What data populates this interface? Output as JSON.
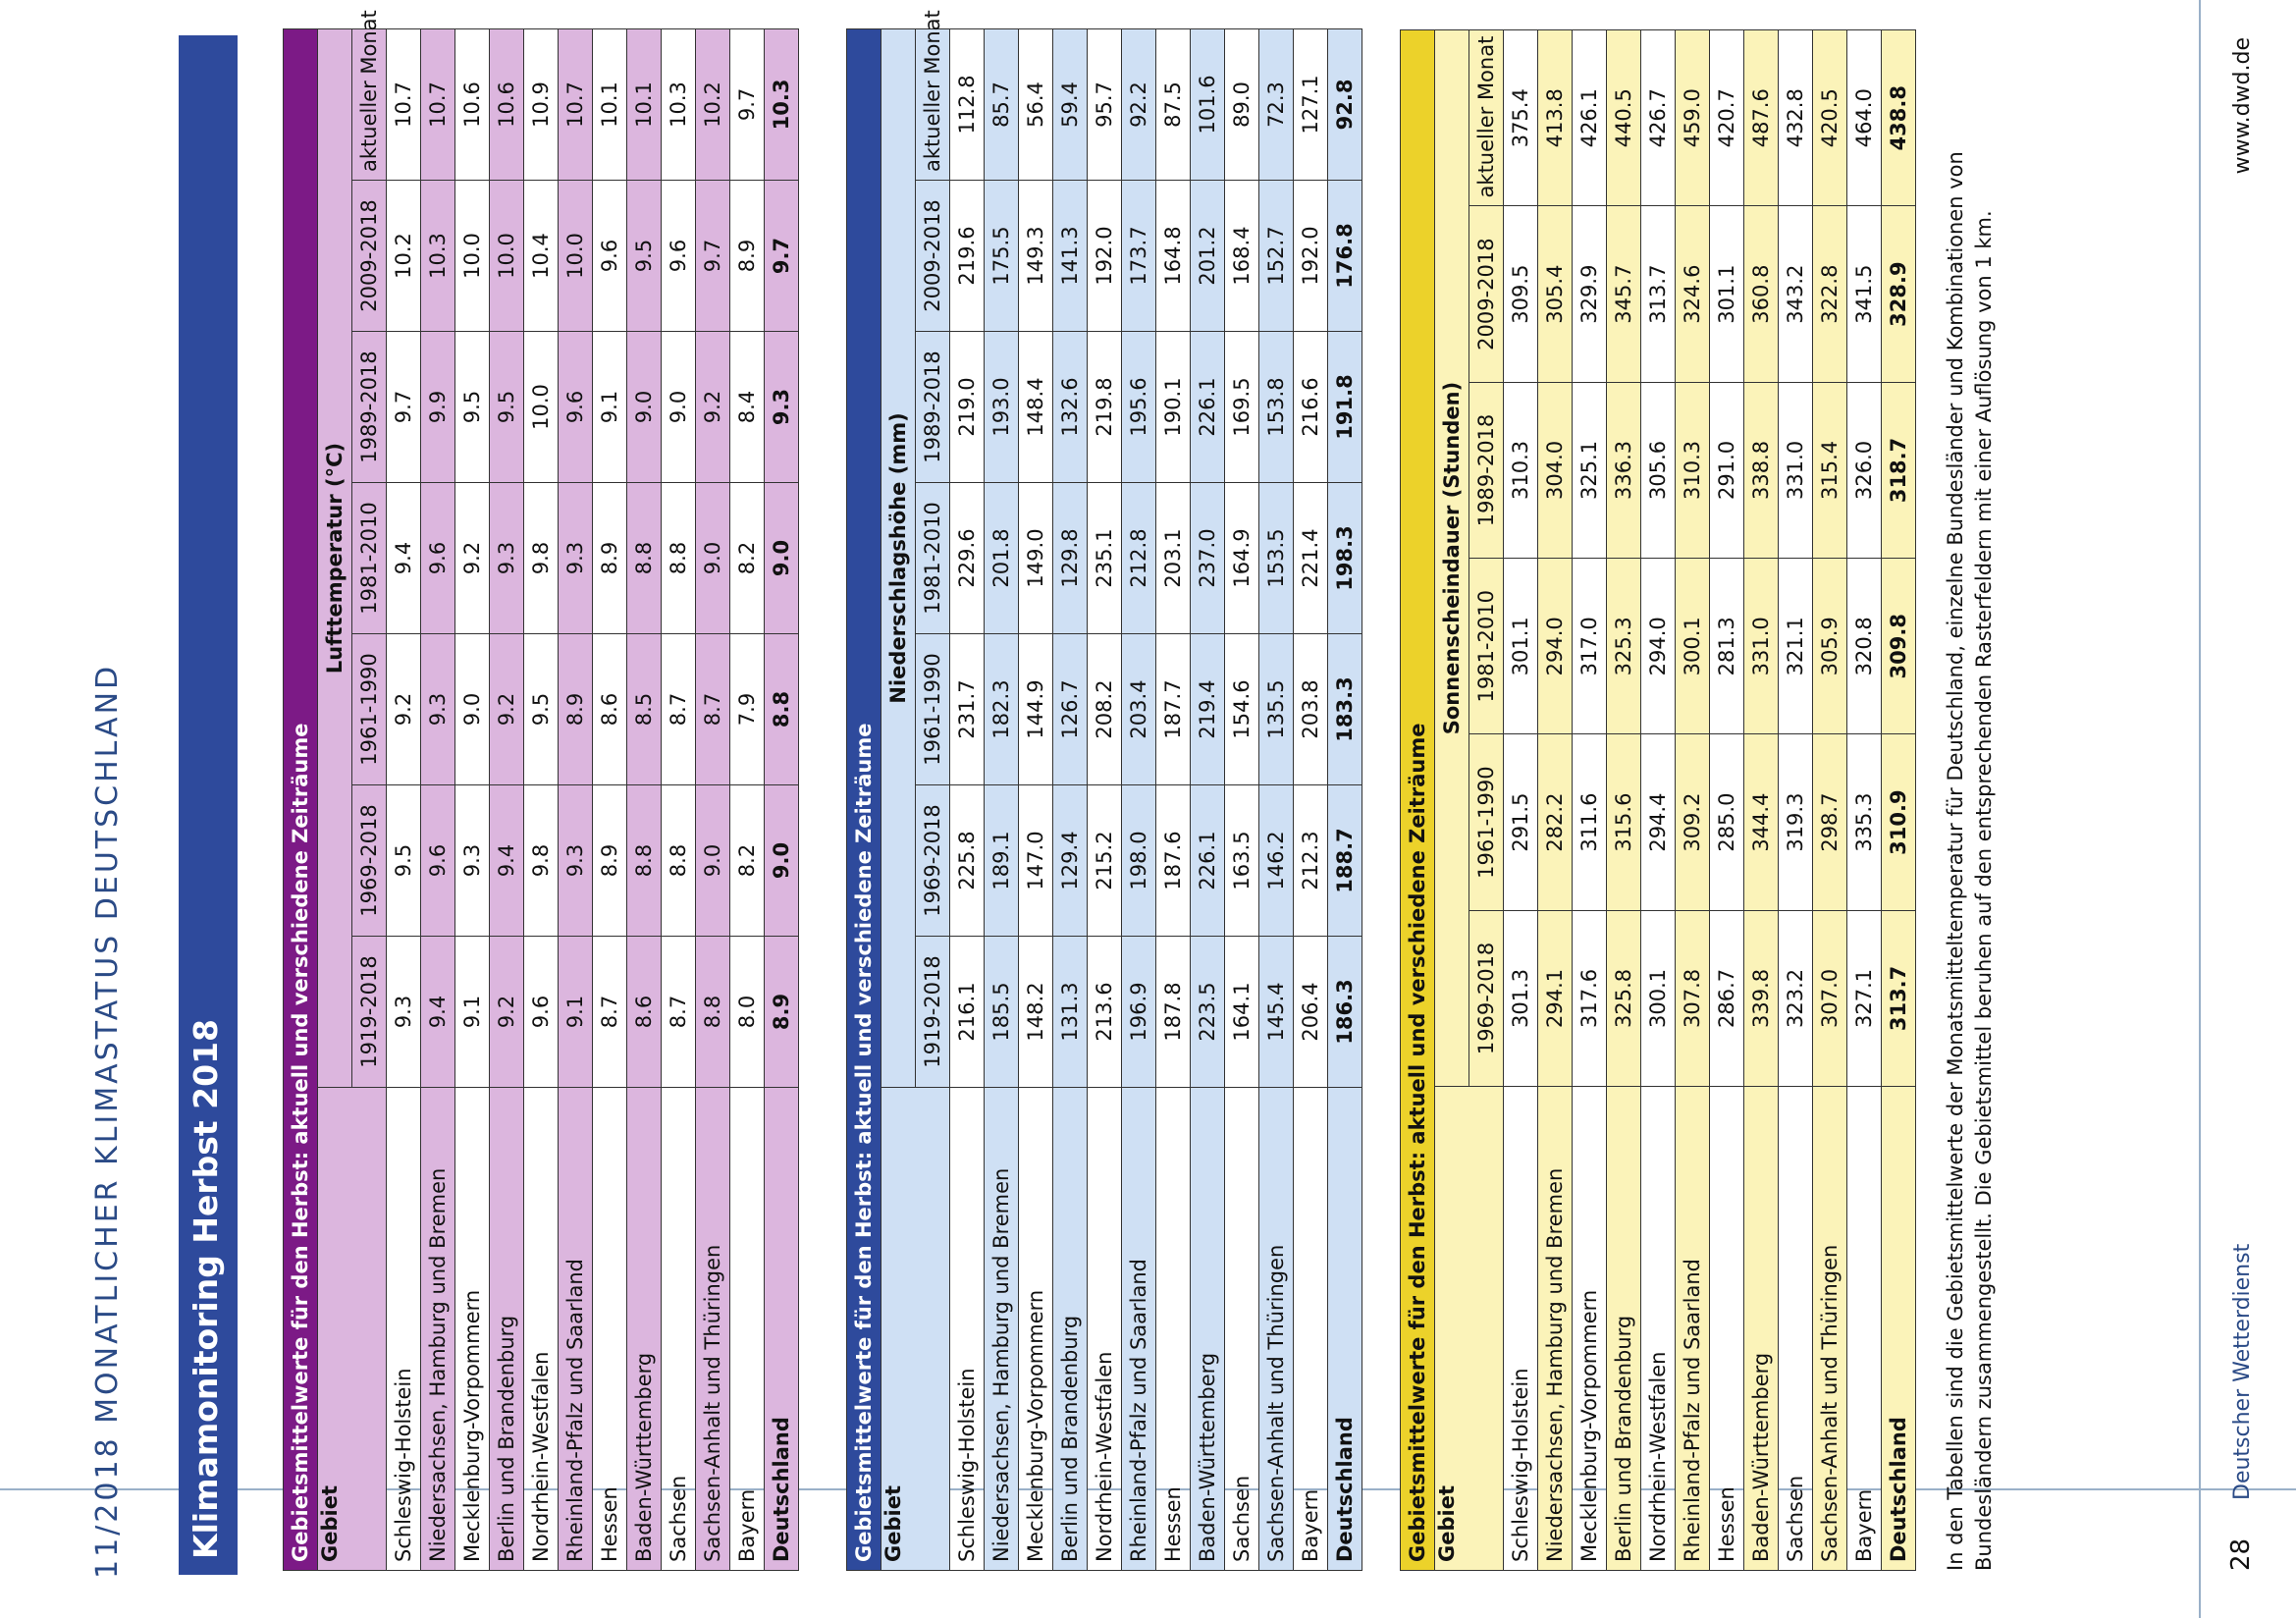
{
  "header": {
    "running_title": "11/2018  MONATLICHER KLIMASTATUS DEUTSCHLAND"
  },
  "title": "Klimamonitoring Herbst 2018",
  "colors": {
    "temp_dark": "#7c1a86",
    "temp_light": "#dcb6de",
    "precip_dark": "#2e4a9c",
    "precip_light": "#cfe0f4",
    "sun_dark": "#ecd22a",
    "sun_light": "#fbf3b9"
  },
  "tables": [
    {
      "caption": "Gebietsmittelwerte für den Herbst: aktuell und verschiedene Zeiträume",
      "gebiet_label": "Gebiet",
      "variable": "Lufttemperatur (°C)",
      "periods": [
        "1919-2018",
        "1969-2018",
        "1961-1990",
        "1981-2010",
        "1989-2018",
        "2009-2018",
        "aktueller Monat"
      ],
      "rows": [
        {
          "name": "Schleswig-Holstein",
          "values": [
            "9.3",
            "9.5",
            "9.2",
            "9.4",
            "9.7",
            "10.2",
            "10.7"
          ]
        },
        {
          "name": "Niedersachsen, Hamburg und Bremen",
          "values": [
            "9.4",
            "9.6",
            "9.3",
            "9.6",
            "9.9",
            "10.3",
            "10.7"
          ]
        },
        {
          "name": "Mecklenburg-Vorpommern",
          "values": [
            "9.1",
            "9.3",
            "9.0",
            "9.2",
            "9.5",
            "10.0",
            "10.6"
          ]
        },
        {
          "name": "Berlin und Brandenburg",
          "values": [
            "9.2",
            "9.4",
            "9.2",
            "9.3",
            "9.5",
            "10.0",
            "10.6"
          ]
        },
        {
          "name": "Nordrhein-Westfalen",
          "values": [
            "9.6",
            "9.8",
            "9.5",
            "9.8",
            "10.0",
            "10.4",
            "10.9"
          ]
        },
        {
          "name": "Rheinland-Pfalz und Saarland",
          "values": [
            "9.1",
            "9.3",
            "8.9",
            "9.3",
            "9.6",
            "10.0",
            "10.7"
          ]
        },
        {
          "name": "Hessen",
          "values": [
            "8.7",
            "8.9",
            "8.6",
            "8.9",
            "9.1",
            "9.6",
            "10.1"
          ]
        },
        {
          "name": "Baden-Württemberg",
          "values": [
            "8.6",
            "8.8",
            "8.5",
            "8.8",
            "9.0",
            "9.5",
            "10.1"
          ]
        },
        {
          "name": "Sachsen",
          "values": [
            "8.7",
            "8.8",
            "8.7",
            "8.8",
            "9.0",
            "9.6",
            "10.3"
          ]
        },
        {
          "name": "Sachsen-Anhalt und Thüringen",
          "values": [
            "8.8",
            "9.0",
            "8.7",
            "9.0",
            "9.2",
            "9.7",
            "10.2"
          ]
        },
        {
          "name": "Bayern",
          "values": [
            "8.0",
            "8.2",
            "7.9",
            "8.2",
            "8.4",
            "8.9",
            "9.7"
          ]
        },
        {
          "name": "Deutschland",
          "values": [
            "8.9",
            "9.0",
            "8.8",
            "9.0",
            "9.3",
            "9.7",
            "10.3"
          ]
        }
      ]
    },
    {
      "caption": "Gebietsmittelwerte für den Herbst: aktuell und verschiedene Zeiträume",
      "gebiet_label": "Gebiet",
      "variable": "Niederschlagshöhe (mm)",
      "periods": [
        "1919-2018",
        "1969-2018",
        "1961-1990",
        "1981-2010",
        "1989-2018",
        "2009-2018",
        "aktueller Monat"
      ],
      "rows": [
        {
          "name": "Schleswig-Holstein",
          "values": [
            "216.1",
            "225.8",
            "231.7",
            "229.6",
            "219.0",
            "219.6",
            "112.8"
          ]
        },
        {
          "name": "Niedersachsen, Hamburg und Bremen",
          "values": [
            "185.5",
            "189.1",
            "182.3",
            "201.8",
            "193.0",
            "175.5",
            "85.7"
          ]
        },
        {
          "name": "Mecklenburg-Vorpommern",
          "values": [
            "148.2",
            "147.0",
            "144.9",
            "149.0",
            "148.4",
            "149.3",
            "56.4"
          ]
        },
        {
          "name": "Berlin und Brandenburg",
          "values": [
            "131.3",
            "129.4",
            "126.7",
            "129.8",
            "132.6",
            "141.3",
            "59.4"
          ]
        },
        {
          "name": "Nordrhein-Westfalen",
          "values": [
            "213.6",
            "215.2",
            "208.2",
            "235.1",
            "219.8",
            "192.0",
            "95.7"
          ]
        },
        {
          "name": "Rheinland-Pfalz und Saarland",
          "values": [
            "196.9",
            "198.0",
            "203.4",
            "212.8",
            "195.6",
            "173.7",
            "92.2"
          ]
        },
        {
          "name": "Hessen",
          "values": [
            "187.8",
            "187.6",
            "187.7",
            "203.1",
            "190.1",
            "164.8",
            "87.5"
          ]
        },
        {
          "name": "Baden-Württemberg",
          "values": [
            "223.5",
            "226.1",
            "219.4",
            "237.0",
            "226.1",
            "201.2",
            "101.6"
          ]
        },
        {
          "name": "Sachsen",
          "values": [
            "164.1",
            "163.5",
            "154.6",
            "164.9",
            "169.5",
            "168.4",
            "89.0"
          ]
        },
        {
          "name": "Sachsen-Anhalt und Thüringen",
          "values": [
            "145.4",
            "146.2",
            "135.5",
            "153.5",
            "153.8",
            "152.7",
            "72.3"
          ]
        },
        {
          "name": "Bayern",
          "values": [
            "206.4",
            "212.3",
            "203.8",
            "221.4",
            "216.6",
            "192.0",
            "127.1"
          ]
        },
        {
          "name": "Deutschland",
          "values": [
            "186.3",
            "188.7",
            "183.3",
            "198.3",
            "191.8",
            "176.8",
            "92.8"
          ]
        }
      ]
    },
    {
      "caption": "Gebietsmittelwerte für den Herbst: aktuell und verschiedene Zeiträume",
      "gebiet_label": "Gebiet",
      "variable": "Sonnenscheindauer (Stunden)",
      "periods": [
        "1969-2018",
        "1961-1990",
        "1981-2010",
        "1989-2018",
        "2009-2018",
        "aktueller Monat"
      ],
      "rows": [
        {
          "name": "Schleswig-Holstein",
          "values": [
            "301.3",
            "291.5",
            "301.1",
            "310.3",
            "309.5",
            "375.4"
          ]
        },
        {
          "name": "Niedersachsen, Hamburg und Bremen",
          "values": [
            "294.1",
            "282.2",
            "294.0",
            "304.0",
            "305.4",
            "413.8"
          ]
        },
        {
          "name": "Mecklenburg-Vorpommern",
          "values": [
            "317.6",
            "311.6",
            "317.0",
            "325.1",
            "329.9",
            "426.1"
          ]
        },
        {
          "name": "Berlin und Brandenburg",
          "values": [
            "325.8",
            "315.6",
            "325.3",
            "336.3",
            "345.7",
            "440.5"
          ]
        },
        {
          "name": "Nordrhein-Westfalen",
          "values": [
            "300.1",
            "294.4",
            "294.0",
            "305.6",
            "313.7",
            "426.7"
          ]
        },
        {
          "name": "Rheinland-Pfalz und Saarland",
          "values": [
            "307.8",
            "309.2",
            "300.1",
            "310.3",
            "324.6",
            "459.0"
          ]
        },
        {
          "name": "Hessen",
          "values": [
            "286.7",
            "285.0",
            "281.3",
            "291.0",
            "301.1",
            "420.7"
          ]
        },
        {
          "name": "Baden-Württemberg",
          "values": [
            "339.8",
            "344.4",
            "331.0",
            "338.8",
            "360.8",
            "487.6"
          ]
        },
        {
          "name": "Sachsen",
          "values": [
            "323.2",
            "319.3",
            "321.1",
            "331.0",
            "343.2",
            "432.8"
          ]
        },
        {
          "name": "Sachsen-Anhalt und Thüringen",
          "values": [
            "307.0",
            "298.7",
            "305.9",
            "315.4",
            "322.8",
            "420.5"
          ]
        },
        {
          "name": "Bayern",
          "values": [
            "327.1",
            "335.3",
            "320.8",
            "326.0",
            "341.5",
            "464.0"
          ]
        },
        {
          "name": "Deutschland",
          "values": [
            "313.7",
            "310.9",
            "309.8",
            "318.7",
            "328.9",
            "438.8"
          ]
        }
      ]
    }
  ],
  "footnote": "In den Tabellen sind die Gebietsmittelwerte der Monatsmitteltemperatur für Deutschland, einzelne Bundesländer und Kombinationen von Bundesländern zusammengestellt. Die Gebietsmittel beruhen auf den entsprechenden Rasterfeldern mit einer Auflösung von 1 km.",
  "footer": {
    "page": "28",
    "org": "Deutscher Wetterdienst",
    "url": "www.dwd.de"
  }
}
